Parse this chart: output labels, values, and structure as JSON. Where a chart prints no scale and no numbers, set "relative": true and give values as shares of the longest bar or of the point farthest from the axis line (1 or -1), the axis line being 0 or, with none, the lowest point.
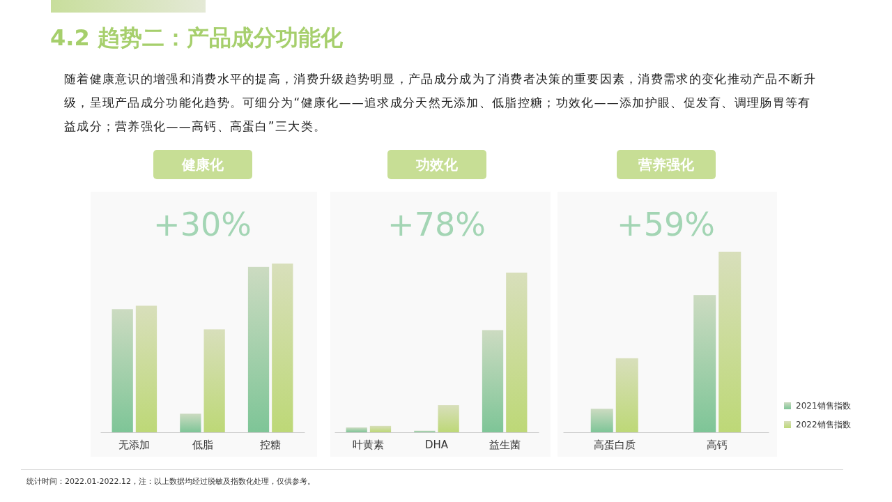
{
  "chart_data": [
    {
      "type": "other",
      "title": "4.2 趋势二：产品成分功能化",
      "subtitle": "随着健康意识的增强和消费水平的提高，消费升级趋势明显，产品成分成为了消费者决策的重要因素，消费需求的变化推动产品不断升级，呈现产品成分功能化趋势。可细分为“健康化——追求成分天然无添加、低脂控糖；功效化——添加护眼、促发育、调理肠胃等有益成分；营养强化——高钙、高蛋白”三大类。",
      "annotations": [
        "统计时间：2022.01-2022.12，注：以上数据均经过脱敏及指数化处理，仅供参考。"
      ]
    },
    {
      "type": "bar",
      "title": "健康化",
      "subtitle": "+30%",
      "relative": true,
      "categories": [
        "无添加",
        "低脂",
        "控糖"
      ],
      "series": [
        {
          "color": "#7ec597",
          "values": [
            0.73,
            0.11,
            0.98
          ]
        },
        {
          "color": "#bdd877",
          "values": [
            0.75,
            0.61,
            1
          ]
        }
      ]
    },
    {
      "type": "bar",
      "title": "功效化",
      "subtitle": "+78%",
      "relative": true,
      "categories": [
        "叶黄素",
        "DHA",
        "益生菌"
      ],
      "series": [
        {
          "color": "#7ec597",
          "values": [
            0.03,
            0.01,
            0.64
          ]
        },
        {
          "color": "#bdd877",
          "values": [
            0.04,
            0.17,
            1
          ]
        }
      ]
    },
    {
      "type": "bar",
      "title": "营养强化",
      "subtitle": "+59%",
      "relative": true,
      "categories": [
        "高蛋白质",
        "高钙"
      ],
      "legend": "bottom right",
      "series": [
        {
          "name": "2021销售指数",
          "color": "#7ec597",
          "values": [
            0.13,
            0.76
          ]
        },
        {
          "name": "2022销售指数",
          "color": "#bdd877",
          "values": [
            0.41,
            1
          ]
        }
      ]
    }
  ]
}
